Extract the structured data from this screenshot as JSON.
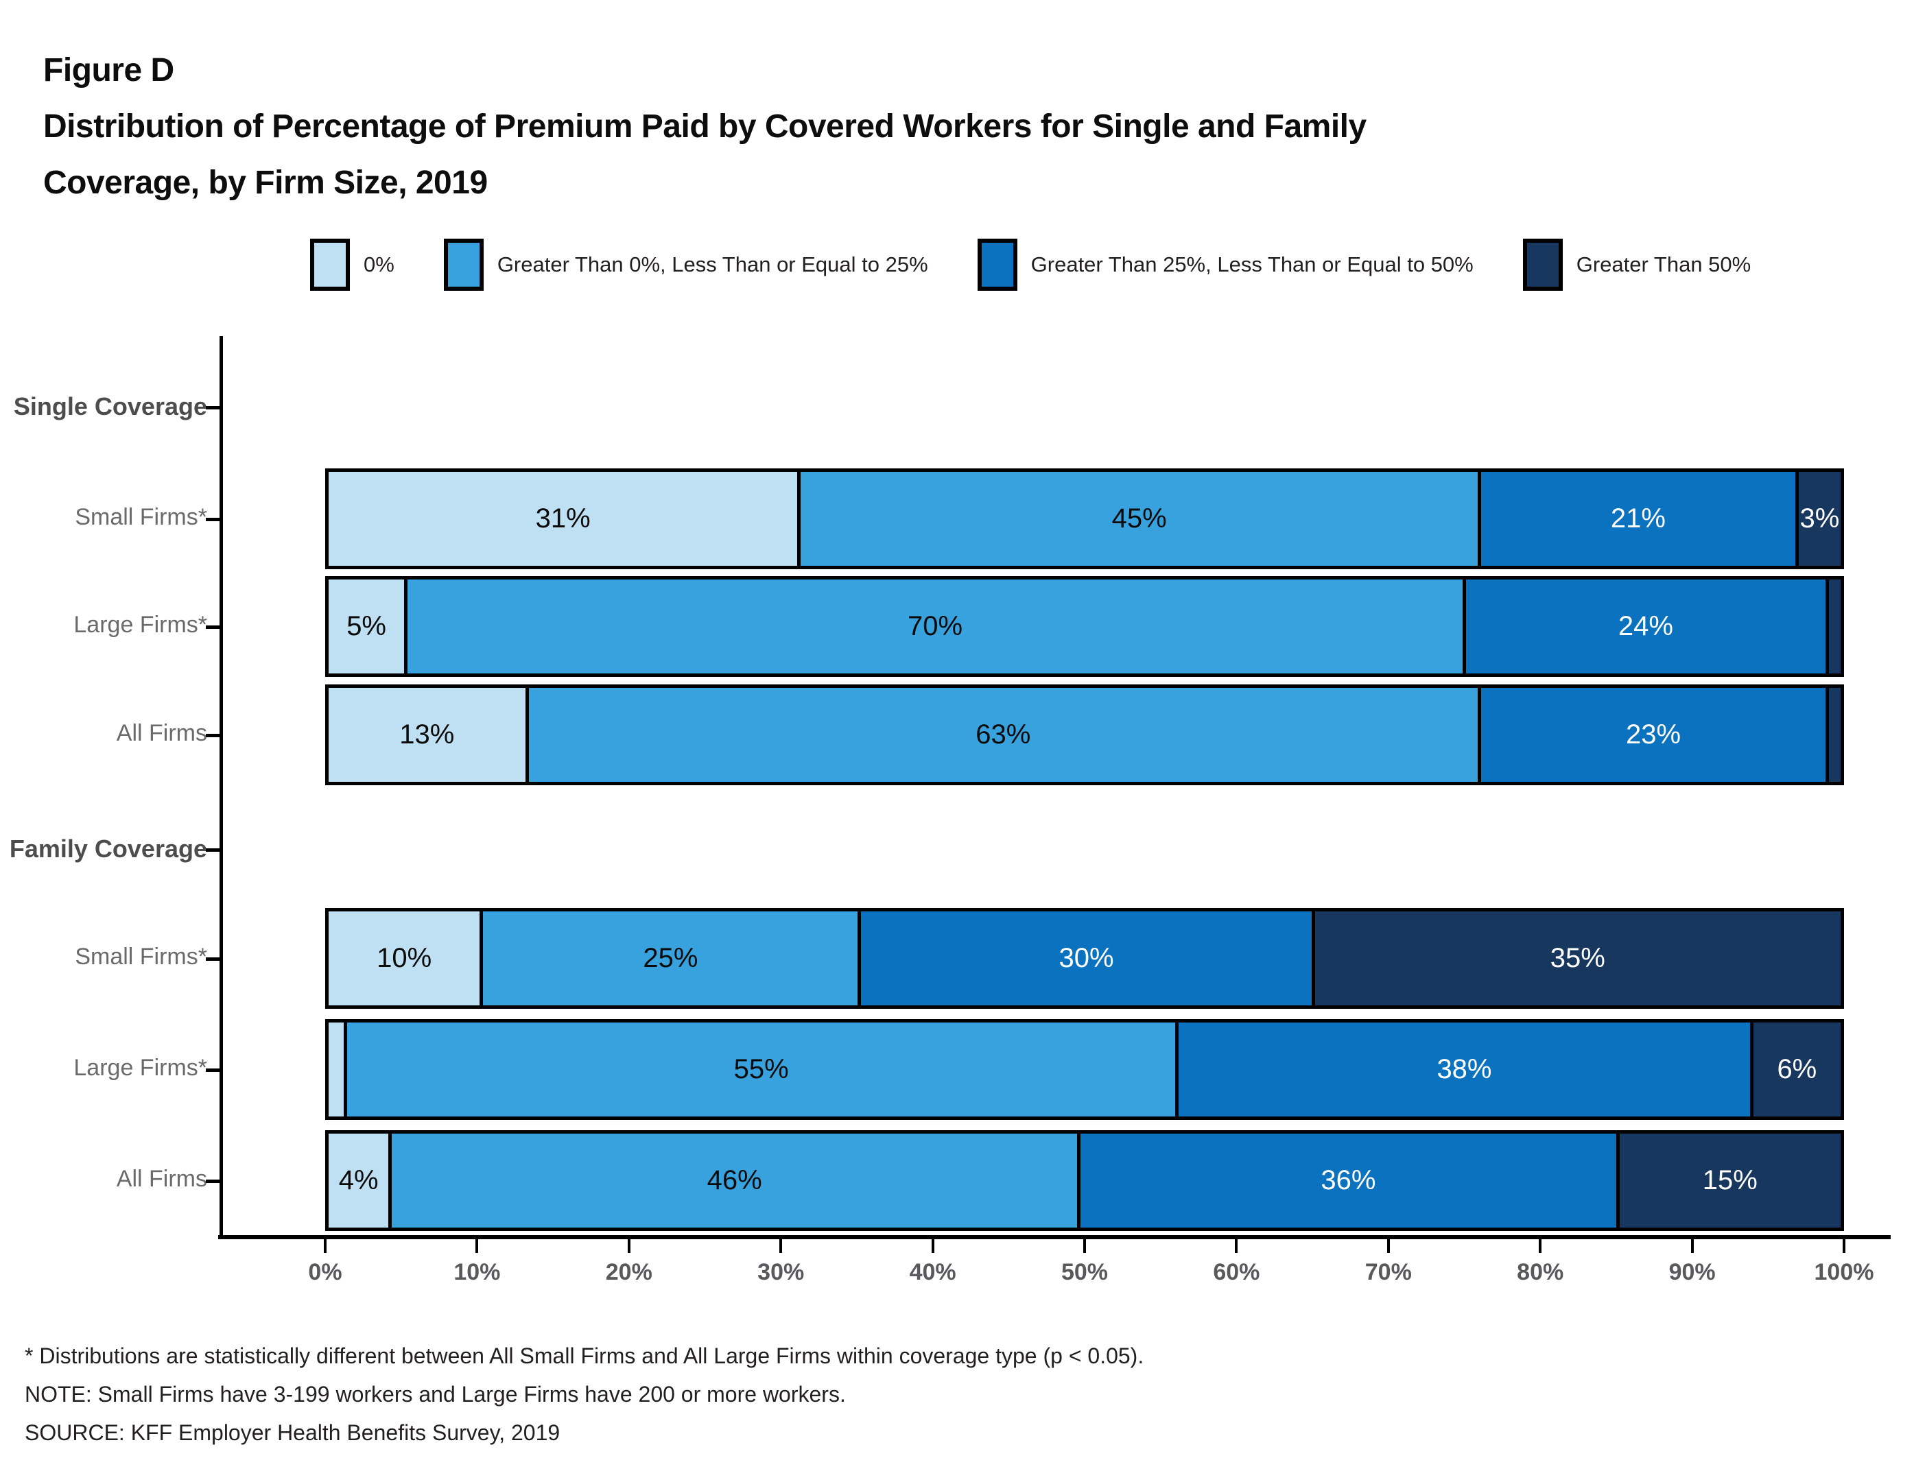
{
  "figure": {
    "label": "Figure D",
    "title_line1": "Distribution of Percentage of Premium Paid by Covered Workers for Single and Family",
    "title_line2": "Coverage, by Firm Size, 2019"
  },
  "footnotes": [
    "* Distributions are statistically different between All Small Firms and All Large Firms within coverage type (p < 0.05).",
    "NOTE: Small Firms have 3-199 workers and Large Firms have 200 or more workers.",
    "SOURCE: KFF Employer Health Benefits Survey, 2019"
  ],
  "chart_data": {
    "type": "bar",
    "orientation": "horizontal_stacked",
    "title": "Distribution of Percentage of Premium Paid by Covered Workers for Single and Family Coverage, by Firm Size, 2019",
    "x_axis": {
      "ticks": [
        "0%",
        "10%",
        "20%",
        "30%",
        "40%",
        "50%",
        "60%",
        "70%",
        "80%",
        "90%",
        "100%"
      ],
      "range": [
        0,
        100
      ],
      "grid": false
    },
    "legend_position": "top",
    "legend": [
      {
        "label": "0%",
        "color": "#BFE0F2"
      },
      {
        "label": "Greater Than 0%, Less Than or Equal to 25%",
        "color": "#38A2DE"
      },
      {
        "label": "Greater Than 25%, Less Than or Equal to 50%",
        "color": "#0A72BE"
      },
      {
        "label": "Greater Than 50%",
        "color": "#17375E"
      }
    ],
    "groups": [
      {
        "label": "Single Coverage",
        "rows": [
          {
            "label": "Small Firms*",
            "values": [
              31,
              45,
              21,
              3
            ],
            "labels": [
              "31%",
              "45%",
              "21%",
              "3%"
            ]
          },
          {
            "label": "Large Firms*",
            "values": [
              5,
              70,
              24,
              1
            ],
            "labels": [
              "5%",
              "70%",
              "24%",
              ""
            ]
          },
          {
            "label": "All Firms",
            "values": [
              13,
              63,
              23,
              1
            ],
            "labels": [
              "13%",
              "63%",
              "23%",
              ""
            ]
          }
        ]
      },
      {
        "label": "Family Coverage",
        "rows": [
          {
            "label": "Small Firms*",
            "values": [
              10,
              25,
              30,
              35
            ],
            "labels": [
              "10%",
              "25%",
              "30%",
              "35%"
            ]
          },
          {
            "label": "Large Firms*",
            "values": [
              1,
              55,
              38,
              6
            ],
            "labels": [
              "",
              "55%",
              "38%",
              "6%"
            ]
          },
          {
            "label": "All Firms",
            "values": [
              4,
              46,
              36,
              15
            ],
            "labels": [
              "4%",
              "46%",
              "36%",
              "15%"
            ]
          }
        ]
      }
    ]
  }
}
